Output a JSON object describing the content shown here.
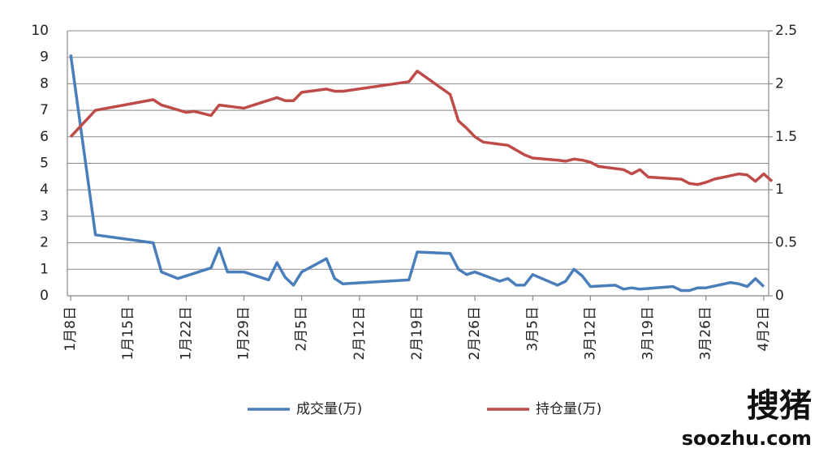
{
  "chart_data": {
    "type": "line",
    "xlim": [
      -0.4,
      84.6
    ],
    "xticks": [
      {
        "value": 0,
        "label": "1月8日"
      },
      {
        "value": 7,
        "label": "1月15日"
      },
      {
        "value": 14,
        "label": "1月22日"
      },
      {
        "value": 21,
        "label": "1月29日"
      },
      {
        "value": 28,
        "label": "2月5日"
      },
      {
        "value": 35,
        "label": "2月12日"
      },
      {
        "value": 42,
        "label": "2月19日"
      },
      {
        "value": 49,
        "label": "2月26日"
      },
      {
        "value": 56,
        "label": "3月5日"
      },
      {
        "value": 63,
        "label": "3月12日"
      },
      {
        "value": 70,
        "label": "3月19日"
      },
      {
        "value": 77,
        "label": "3月26日"
      },
      {
        "value": 84,
        "label": "4月2日"
      }
    ],
    "ylim": [
      0,
      10
    ],
    "yticks": [
      0,
      1,
      2,
      3,
      4,
      5,
      6,
      7,
      8,
      9,
      10
    ],
    "y2lim": [
      0,
      2.5
    ],
    "y2ticks": [
      0,
      0.5,
      1,
      1.5,
      2,
      2.5
    ],
    "grid": true,
    "legend": "bottom",
    "series": [
      {
        "name": "成交量(万)",
        "color": "#4a7ebb",
        "x": [
          0,
          3,
          10,
          11,
          13,
          15,
          17,
          18,
          19,
          21,
          24,
          25,
          26,
          27,
          28,
          31,
          32,
          33,
          41,
          42,
          46,
          47,
          48,
          49,
          52,
          53,
          54,
          55,
          56,
          59,
          60,
          61,
          62,
          63,
          66,
          67,
          68,
          69,
          73,
          74,
          75,
          76,
          77,
          80,
          81,
          82,
          83,
          84
        ],
        "values": [
          9.1,
          2.3,
          2.0,
          0.9,
          0.65,
          0.85,
          1.05,
          1.8,
          0.9,
          0.9,
          0.6,
          1.25,
          0.7,
          0.4,
          0.9,
          1.4,
          0.65,
          0.45,
          0.6,
          1.65,
          1.6,
          1.0,
          0.8,
          0.9,
          0.55,
          0.65,
          0.4,
          0.4,
          0.8,
          0.4,
          0.55,
          1.0,
          0.75,
          0.35,
          0.4,
          0.25,
          0.3,
          0.25,
          0.35,
          0.2,
          0.2,
          0.3,
          0.3,
          0.5,
          0.45,
          0.35,
          0.65,
          0.35
        ]
      },
      {
        "name": "持仓量(万)",
        "color": "#be4b48",
        "axis": "y2",
        "x": [
          0,
          3,
          10,
          11,
          14,
          15,
          17,
          18,
          20,
          21,
          25,
          26,
          27,
          28,
          31,
          32,
          33,
          41,
          42,
          46,
          47,
          48,
          49,
          50,
          52,
          53,
          55,
          56,
          59,
          60,
          61,
          62,
          63,
          64,
          67,
          68,
          69,
          70,
          74,
          75,
          76,
          77,
          78,
          81,
          82,
          83,
          84,
          85
        ],
        "values": [
          1.5,
          1.75,
          1.85,
          1.8,
          1.73,
          1.74,
          1.7,
          1.8,
          1.78,
          1.77,
          1.87,
          1.84,
          1.84,
          1.92,
          1.95,
          1.93,
          1.93,
          2.02,
          2.12,
          1.9,
          1.65,
          1.58,
          1.5,
          1.45,
          1.43,
          1.42,
          1.33,
          1.3,
          1.28,
          1.27,
          1.29,
          1.28,
          1.26,
          1.22,
          1.19,
          1.15,
          1.19,
          1.12,
          1.1,
          1.06,
          1.05,
          1.07,
          1.1,
          1.15,
          1.14,
          1.08,
          1.15,
          1.08
        ]
      }
    ],
    "watermark": [
      "搜猪",
      "soozhu.com"
    ]
  }
}
